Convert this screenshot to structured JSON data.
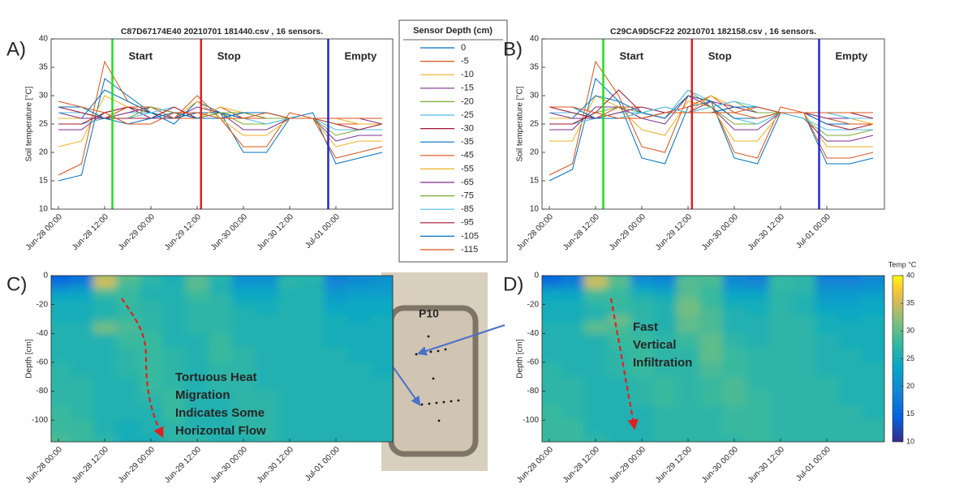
{
  "legend": {
    "title": "Sensor Depth (cm)"
  },
  "inset": {
    "label": "P10"
  },
  "chart_data": [
    {
      "type": "line",
      "panel": "A)",
      "title": "C87D67174E40 20210701 181440.csv ,  16 sensors.",
      "y_label": "Soil temperature [°C]",
      "x": [
        "Jun-28 00:00",
        null,
        "Jun-28 12:00",
        null,
        "Jun-29 00:00",
        null,
        "Jun-29 12:00",
        null,
        "Jun-30 00:00",
        null,
        "Jun-30 12:00",
        null,
        "Jul-01 00:00",
        null,
        null
      ],
      "ylim": [
        10,
        40
      ],
      "yticks": [
        10,
        15,
        20,
        25,
        30,
        35,
        40
      ],
      "markers": [
        {
          "label": "Start",
          "x": "Jun-28 14:00",
          "color": "#22dd22"
        },
        {
          "label": "Stop",
          "x": "Jun-29 13:00",
          "color": "#e02020"
        },
        {
          "label": "Empty",
          "x": "Jun-30 22:00",
          "color": "#2828c8"
        }
      ],
      "series": [
        {
          "name": "0",
          "color": "#0072bd",
          "values": [
            15,
            16,
            33,
            30,
            27,
            25,
            29,
            27,
            20,
            20,
            26,
            27,
            18,
            19,
            20
          ]
        },
        {
          "name": "-5",
          "color": "#d95319",
          "values": [
            16,
            18,
            36,
            29,
            27,
            26,
            30,
            26,
            21,
            21,
            27,
            26,
            19,
            20,
            21
          ]
        },
        {
          "name": "-10",
          "color": "#edb120",
          "values": [
            21,
            22,
            30,
            28,
            26,
            26,
            29,
            26,
            23,
            23,
            26,
            26,
            21,
            22,
            22
          ]
        },
        {
          "name": "-15",
          "color": "#7e2f8e",
          "values": [
            24,
            24,
            27,
            28,
            26,
            26,
            28,
            27,
            24,
            24,
            26,
            26,
            22,
            23,
            23
          ]
        },
        {
          "name": "-20",
          "color": "#77ac30",
          "values": [
            25,
            25,
            26,
            28,
            27,
            26,
            27,
            27,
            25,
            25,
            26,
            26,
            23,
            24,
            24
          ]
        },
        {
          "name": "-25",
          "color": "#4dbeee",
          "values": [
            25,
            25,
            26,
            27,
            27,
            26,
            27,
            27,
            26,
            25,
            26,
            26,
            24,
            24,
            24
          ]
        },
        {
          "name": "-30",
          "color": "#a2142f",
          "values": [
            25,
            25,
            27,
            28,
            27,
            26,
            27,
            27,
            26,
            26,
            26,
            26,
            25,
            24,
            25
          ]
        },
        {
          "name": "-35",
          "color": "#0072bd",
          "values": [
            26,
            26,
            31,
            29,
            27,
            26,
            27,
            27,
            26,
            26,
            26,
            26,
            25,
            25,
            25
          ]
        },
        {
          "name": "-45",
          "color": "#d95319",
          "values": [
            26,
            26,
            26,
            28,
            28,
            26,
            26,
            28,
            26,
            26,
            26,
            26,
            25,
            25,
            25
          ]
        },
        {
          "name": "-55",
          "color": "#edb120",
          "values": [
            26,
            26,
            26,
            27,
            28,
            27,
            26,
            28,
            27,
            26,
            26,
            26,
            26,
            25,
            25
          ]
        },
        {
          "name": "-65",
          "color": "#7e2f8e",
          "values": [
            27,
            26,
            26,
            27,
            28,
            27,
            26,
            27,
            27,
            26,
            26,
            26,
            26,
            26,
            25
          ]
        },
        {
          "name": "-75",
          "color": "#77ac30",
          "values": [
            27,
            27,
            26,
            26,
            28,
            27,
            26,
            27,
            27,
            26,
            26,
            26,
            26,
            26,
            26
          ]
        },
        {
          "name": "-85",
          "color": "#4dbeee",
          "values": [
            27,
            27,
            26,
            26,
            27,
            28,
            26,
            26,
            27,
            27,
            26,
            26,
            26,
            26,
            26
          ]
        },
        {
          "name": "-95",
          "color": "#a2142f",
          "values": [
            28,
            27,
            26,
            26,
            26,
            28,
            26,
            26,
            27,
            27,
            26,
            26,
            26,
            26,
            26
          ]
        },
        {
          "name": "-105",
          "color": "#0072bd",
          "values": [
            28,
            28,
            26,
            25,
            26,
            27,
            26,
            26,
            27,
            27,
            26,
            26,
            26,
            26,
            26
          ]
        },
        {
          "name": "-115",
          "color": "#d95319",
          "values": [
            29,
            28,
            27,
            25,
            25,
            27,
            27,
            26,
            26,
            27,
            26,
            26,
            26,
            26,
            26
          ]
        }
      ]
    },
    {
      "type": "line",
      "panel": "B)",
      "title": "C29CA9D5CF22 20210701 182158.csv ,  16 sensors.",
      "y_label": "Soil temperature [°C]",
      "x": [
        "Jun-28 00:00",
        null,
        "Jun-28 12:00",
        null,
        "Jun-29 00:00",
        null,
        "Jun-29 12:00",
        null,
        "Jun-30 00:00",
        null,
        "Jun-30 12:00",
        null,
        "Jul-01 00:00",
        null,
        null
      ],
      "ylim": [
        10,
        40
      ],
      "yticks": [
        10,
        15,
        20,
        25,
        30,
        35,
        40
      ],
      "markers": [
        {
          "label": "Start",
          "x": "Jun-28 14:00",
          "color": "#22dd22"
        },
        {
          "label": "Stop",
          "x": "Jun-29 13:00",
          "color": "#e02020"
        },
        {
          "label": "Empty",
          "x": "Jun-30 22:00",
          "color": "#2828c8"
        }
      ],
      "series": [
        {
          "name": "0",
          "color": "#0072bd",
          "values": [
            15,
            17,
            33,
            29,
            19,
            18,
            28,
            29,
            19,
            18,
            27,
            27,
            18,
            18,
            19
          ]
        },
        {
          "name": "-5",
          "color": "#d95319",
          "values": [
            16,
            18,
            36,
            30,
            21,
            20,
            30,
            29,
            20,
            19,
            28,
            27,
            19,
            19,
            20
          ]
        },
        {
          "name": "-10",
          "color": "#edb120",
          "values": [
            22,
            22,
            30,
            28,
            24,
            23,
            29,
            28,
            22,
            22,
            27,
            27,
            21,
            21,
            21
          ]
        },
        {
          "name": "-15",
          "color": "#7e2f8e",
          "values": [
            24,
            24,
            28,
            28,
            26,
            25,
            30,
            28,
            24,
            24,
            27,
            26,
            22,
            22,
            23
          ]
        },
        {
          "name": "-20",
          "color": "#77ac30",
          "values": [
            25,
            25,
            27,
            28,
            27,
            26,
            31,
            28,
            25,
            25,
            27,
            26,
            23,
            23,
            24
          ]
        },
        {
          "name": "-25",
          "color": "#4dbeee",
          "values": [
            25,
            25,
            26,
            27,
            27,
            26,
            31,
            29,
            26,
            25,
            27,
            26,
            24,
            24,
            24
          ]
        },
        {
          "name": "-30",
          "color": "#a2142f",
          "values": [
            25,
            25,
            27,
            31,
            27,
            26,
            30,
            29,
            26,
            26,
            27,
            27,
            25,
            24,
            25
          ]
        },
        {
          "name": "-35",
          "color": "#0072bd",
          "values": [
            26,
            26,
            30,
            29,
            27,
            26,
            30,
            29,
            26,
            26,
            27,
            27,
            25,
            25,
            25
          ]
        },
        {
          "name": "-45",
          "color": "#d95319",
          "values": [
            26,
            26,
            26,
            28,
            28,
            27,
            28,
            30,
            27,
            26,
            27,
            27,
            26,
            25,
            25
          ]
        },
        {
          "name": "-55",
          "color": "#edb120",
          "values": [
            26,
            26,
            26,
            27,
            28,
            27,
            27,
            30,
            28,
            27,
            27,
            27,
            26,
            26,
            25
          ]
        },
        {
          "name": "-65",
          "color": "#7e2f8e",
          "values": [
            27,
            26,
            26,
            27,
            28,
            27,
            27,
            29,
            28,
            27,
            27,
            27,
            26,
            26,
            26
          ]
        },
        {
          "name": "-75",
          "color": "#77ac30",
          "values": [
            27,
            27,
            26,
            26,
            27,
            28,
            27,
            28,
            29,
            27,
            27,
            27,
            27,
            26,
            26
          ]
        },
        {
          "name": "-85",
          "color": "#4dbeee",
          "values": [
            27,
            27,
            26,
            26,
            27,
            28,
            27,
            28,
            29,
            28,
            27,
            27,
            27,
            26,
            26
          ]
        },
        {
          "name": "-95",
          "color": "#a2142f",
          "values": [
            28,
            27,
            26,
            26,
            26,
            27,
            27,
            27,
            28,
            28,
            27,
            27,
            27,
            27,
            26
          ]
        },
        {
          "name": "-105",
          "color": "#0072bd",
          "values": [
            28,
            28,
            26,
            26,
            26,
            27,
            27,
            27,
            28,
            28,
            27,
            27,
            27,
            27,
            27
          ]
        },
        {
          "name": "-115",
          "color": "#d95319",
          "values": [
            28,
            28,
            27,
            26,
            26,
            27,
            27,
            27,
            27,
            28,
            27,
            27,
            27,
            27,
            27
          ]
        }
      ]
    },
    {
      "type": "heatmap",
      "panel": "C)",
      "y_label": "Depth [cm]",
      "x": [
        "Jun-28 00:00",
        null,
        "Jun-28 12:00",
        null,
        "Jun-29 00:00",
        null,
        "Jun-29 12:00",
        null,
        "Jun-30 00:00",
        null,
        "Jun-30 12:00",
        null,
        "Jul-01 00:00",
        null,
        null
      ],
      "y": [
        0,
        -5,
        -10,
        -15,
        -20,
        -25,
        -30,
        -35,
        -45,
        -55,
        -65,
        -75,
        -85,
        -95,
        -105,
        -115
      ],
      "ylim": [
        -115,
        0
      ],
      "yticks": [
        0,
        -20,
        -40,
        -60,
        -80,
        -100
      ],
      "annotation": {
        "lines": [
          "Tortuous Heat",
          "Migration",
          "Indicates Some",
          "Horizontal Flow"
        ],
        "color": "#e02020"
      }
    },
    {
      "type": "heatmap",
      "panel": "D)",
      "y_label": "Depth [cm]",
      "x": [
        "Jun-28 00:00",
        null,
        "Jun-28 12:00",
        null,
        "Jun-29 00:00",
        null,
        "Jun-29 12:00",
        null,
        "Jun-30 00:00",
        null,
        "Jun-30 12:00",
        null,
        "Jul-01 00:00",
        null,
        null
      ],
      "y": [
        0,
        -5,
        -10,
        -15,
        -20,
        -25,
        -30,
        -35,
        -45,
        -55,
        -65,
        -75,
        -85,
        -95,
        -105,
        -115
      ],
      "ylim": [
        -115,
        0
      ],
      "yticks": [
        0,
        -20,
        -40,
        -60,
        -80,
        -100
      ],
      "colorbar": {
        "label": "Temp °C",
        "lim": [
          10,
          40
        ],
        "ticks": [
          10,
          15,
          20,
          25,
          30,
          35,
          40
        ]
      },
      "annotation": {
        "lines": [
          "Fast",
          "Vertical",
          "Infiltration"
        ],
        "color": "#e02020"
      }
    }
  ]
}
